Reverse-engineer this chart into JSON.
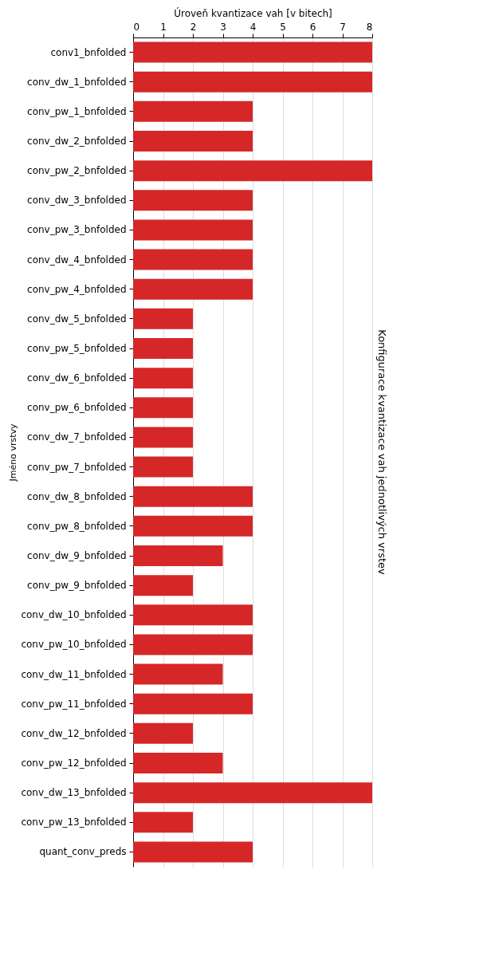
{
  "chart_data": {
    "type": "bar",
    "orientation": "horizontal",
    "title": "Konfigurace kvantizace vah jednotlivých vrstev",
    "xlabel": "Úroveň kvantizace vah [v bitech]",
    "ylabel": "Jméno vrstvy",
    "categories": [
      "conv1_bnfolded",
      "conv_dw_1_bnfolded",
      "conv_pw_1_bnfolded",
      "conv_dw_2_bnfolded",
      "conv_pw_2_bnfolded",
      "conv_dw_3_bnfolded",
      "conv_pw_3_bnfolded",
      "conv_dw_4_bnfolded",
      "conv_pw_4_bnfolded",
      "conv_dw_5_bnfolded",
      "conv_pw_5_bnfolded",
      "conv_dw_6_bnfolded",
      "conv_pw_6_bnfolded",
      "conv_dw_7_bnfolded",
      "conv_pw_7_bnfolded",
      "conv_dw_8_bnfolded",
      "conv_pw_8_bnfolded",
      "conv_dw_9_bnfolded",
      "conv_pw_9_bnfolded",
      "conv_dw_10_bnfolded",
      "conv_pw_10_bnfolded",
      "conv_dw_11_bnfolded",
      "conv_pw_11_bnfolded",
      "conv_dw_12_bnfolded",
      "conv_pw_12_bnfolded",
      "conv_dw_13_bnfolded",
      "conv_pw_13_bnfolded",
      "quant_conv_preds"
    ],
    "values": [
      8,
      8,
      4,
      4,
      8,
      4,
      4,
      4,
      4,
      2,
      2,
      2,
      2,
      2,
      2,
      4,
      4,
      3,
      2,
      4,
      4,
      3,
      4,
      2,
      3,
      8,
      2,
      4
    ],
    "color": "#d62728",
    "xlim": [
      0,
      8
    ],
    "xticks": [
      0,
      1,
      2,
      3,
      4,
      5,
      6,
      7,
      8
    ],
    "grid": "x"
  }
}
